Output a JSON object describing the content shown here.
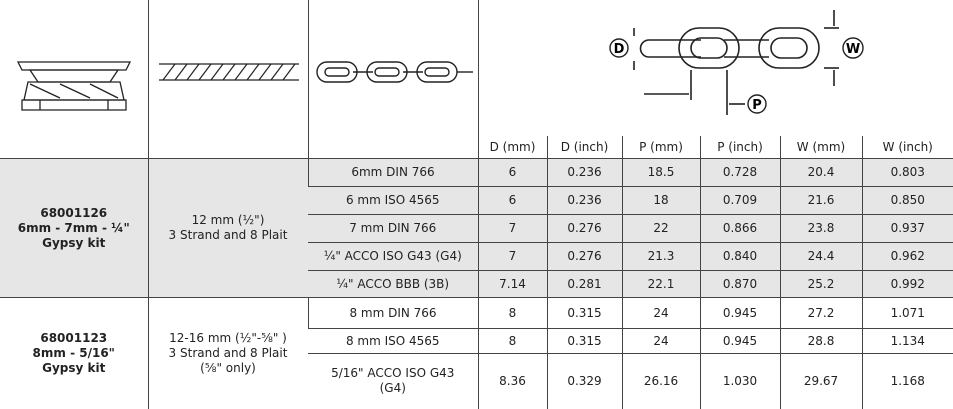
{
  "header": {
    "diagram_labels": [
      "D",
      "P",
      "W"
    ],
    "columns": [
      "D (mm)",
      "D (inch)",
      "P (mm)",
      "P (inch)",
      "W (mm)",
      "W (inch)"
    ]
  },
  "groups": [
    {
      "product": [
        "68001126",
        "6mm - 7mm - ¼\"",
        "Gypsy kit"
      ],
      "rope": [
        "12 mm (½\")",
        "3 Strand and 8 Plait"
      ],
      "rows": [
        [
          [
            "6mm DIN 766"
          ],
          "6",
          "0.236",
          "18.5",
          "0.728",
          "20.4",
          "0.803"
        ],
        [
          [
            "6 mm ISO 4565"
          ],
          "6",
          "0.236",
          "18",
          "0.709",
          "21.6",
          "0.850"
        ],
        [
          [
            "7 mm DIN 766"
          ],
          "7",
          "0.276",
          "22",
          "0.866",
          "23.8",
          "0.937"
        ],
        [
          [
            "¼\" ACCO ISO G43 (G4)"
          ],
          "7",
          "0.276",
          "21.3",
          "0.840",
          "24.4",
          "0.962"
        ],
        [
          [
            "¼\" ACCO BBB (3B)"
          ],
          "7.14",
          "0.281",
          "22.1",
          "0.870",
          "25.2",
          "0.992"
        ]
      ]
    },
    {
      "product": [
        "68001123",
        "8mm - 5/16\"",
        "Gypsy kit"
      ],
      "rope": [
        "12-16 mm (½\"-⅝\" )",
        "3 Strand and 8 Plait",
        "(⅝\" only)"
      ],
      "rows": [
        [
          [
            "8 mm DIN 766"
          ],
          "8",
          "0.315",
          "24",
          "0.945",
          "27.2",
          "1.071"
        ],
        [
          [
            "8 mm ISO 4565"
          ],
          "8",
          "0.315",
          "24",
          "0.945",
          "28.8",
          "1.134"
        ],
        [
          [
            "5/16\" ACCO ISO G43",
            "(G4)"
          ],
          "8.36",
          "0.329",
          "26.16",
          "1.030",
          "29.67",
          "1.168"
        ]
      ]
    }
  ]
}
